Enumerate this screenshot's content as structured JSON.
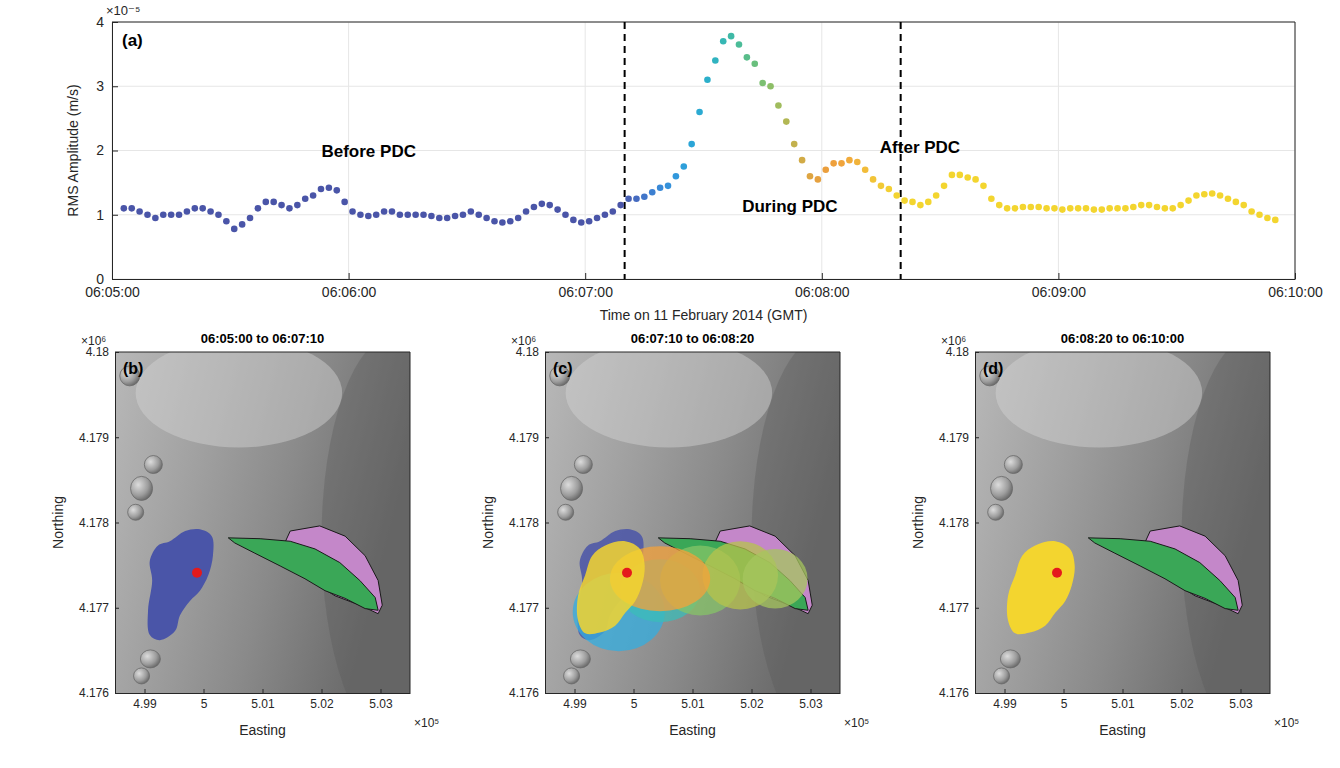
{
  "chart_data": [
    {
      "type": "scatter",
      "panel": "(a)",
      "marker": "circle",
      "grid": true,
      "x_label": "Time on 11 February 2014 (GMT)",
      "y_label": "RMS Amplitude (m/s)",
      "y_multiplier": "×10⁻⁵",
      "xlim": [
        "06:05:00",
        "06:10:00"
      ],
      "xticks": [
        "06:05:00",
        "06:06:00",
        "06:07:00",
        "06:08:00",
        "06:09:00",
        "06:10:00"
      ],
      "ylim": [
        0,
        4
      ],
      "yticks": [
        0,
        1,
        2,
        3,
        4
      ],
      "vlines": [
        "06:07:10",
        "06:08:20"
      ],
      "annotations": [
        "Before PDC",
        "During PDC",
        "After PDC"
      ],
      "x": [
        "06:05:03",
        "06:05:05",
        "06:05:07",
        "06:05:09",
        "06:05:11",
        "06:05:13",
        "06:05:15",
        "06:05:17",
        "06:05:19",
        "06:05:21",
        "06:05:23",
        "06:05:25",
        "06:05:27",
        "06:05:29",
        "06:05:31",
        "06:05:33",
        "06:05:35",
        "06:05:37",
        "06:05:39",
        "06:05:41",
        "06:05:43",
        "06:05:45",
        "06:05:47",
        "06:05:49",
        "06:05:51",
        "06:05:53",
        "06:05:55",
        "06:05:57",
        "06:05:59",
        "06:06:01",
        "06:06:03",
        "06:06:05",
        "06:06:07",
        "06:06:09",
        "06:06:11",
        "06:06:13",
        "06:06:15",
        "06:06:17",
        "06:06:19",
        "06:06:21",
        "06:06:23",
        "06:06:25",
        "06:06:27",
        "06:06:29",
        "06:06:31",
        "06:06:33",
        "06:06:35",
        "06:06:37",
        "06:06:39",
        "06:06:41",
        "06:06:43",
        "06:06:45",
        "06:06:47",
        "06:06:49",
        "06:06:51",
        "06:06:53",
        "06:06:55",
        "06:06:57",
        "06:06:59",
        "06:07:01",
        "06:07:03",
        "06:07:05",
        "06:07:07",
        "06:07:09",
        "06:07:11",
        "06:07:13",
        "06:07:15",
        "06:07:17",
        "06:07:19",
        "06:07:21",
        "06:07:23",
        "06:07:25",
        "06:07:27",
        "06:07:29",
        "06:07:31",
        "06:07:33",
        "06:07:35",
        "06:07:37",
        "06:07:39",
        "06:07:41",
        "06:07:43",
        "06:07:45",
        "06:07:47",
        "06:07:49",
        "06:07:51",
        "06:07:53",
        "06:07:55",
        "06:07:57",
        "06:07:59",
        "06:08:01",
        "06:08:03",
        "06:08:05",
        "06:08:07",
        "06:08:09",
        "06:08:11",
        "06:08:13",
        "06:08:15",
        "06:08:17",
        "06:08:19",
        "06:08:21",
        "06:08:23",
        "06:08:25",
        "06:08:27",
        "06:08:29",
        "06:08:31",
        "06:08:33",
        "06:08:35",
        "06:08:37",
        "06:08:39",
        "06:08:41",
        "06:08:43",
        "06:08:45",
        "06:08:47",
        "06:08:49",
        "06:08:51",
        "06:08:53",
        "06:08:55",
        "06:08:57",
        "06:08:59",
        "06:09:01",
        "06:09:03",
        "06:09:05",
        "06:09:07",
        "06:09:09",
        "06:09:11",
        "06:09:13",
        "06:09:15",
        "06:09:17",
        "06:09:19",
        "06:09:21",
        "06:09:23",
        "06:09:25",
        "06:09:27",
        "06:09:29",
        "06:09:31",
        "06:09:33",
        "06:09:35",
        "06:09:37",
        "06:09:39",
        "06:09:41",
        "06:09:43",
        "06:09:45",
        "06:09:47",
        "06:09:49",
        "06:09:51",
        "06:09:53",
        "06:09:55"
      ],
      "values": [
        1.1,
        1.1,
        1.05,
        1.0,
        0.95,
        1.0,
        1.0,
        1.0,
        1.05,
        1.1,
        1.1,
        1.05,
        1.0,
        0.9,
        0.78,
        0.85,
        0.95,
        1.1,
        1.2,
        1.2,
        1.15,
        1.1,
        1.15,
        1.25,
        1.3,
        1.4,
        1.42,
        1.38,
        1.2,
        1.05,
        1.0,
        0.98,
        1.0,
        1.05,
        1.05,
        1.0,
        1.0,
        1.0,
        1.0,
        0.98,
        0.95,
        0.95,
        0.98,
        1.0,
        1.05,
        1.0,
        0.95,
        0.9,
        0.88,
        0.9,
        0.95,
        1.05,
        1.12,
        1.17,
        1.15,
        1.08,
        1.0,
        0.92,
        0.88,
        0.9,
        0.95,
        1.0,
        1.05,
        1.15,
        1.25,
        1.25,
        1.28,
        1.35,
        1.42,
        1.45,
        1.6,
        1.75,
        2.1,
        2.6,
        3.1,
        3.4,
        3.7,
        3.78,
        3.65,
        3.45,
        3.35,
        3.05,
        3.0,
        2.7,
        2.45,
        2.1,
        1.85,
        1.6,
        1.55,
        1.7,
        1.8,
        1.8,
        1.85,
        1.82,
        1.7,
        1.55,
        1.45,
        1.4,
        1.3,
        1.22,
        1.2,
        1.15,
        1.2,
        1.3,
        1.45,
        1.62,
        1.62,
        1.58,
        1.55,
        1.45,
        1.25,
        1.15,
        1.1,
        1.1,
        1.12,
        1.12,
        1.12,
        1.1,
        1.1,
        1.08,
        1.1,
        1.1,
        1.1,
        1.08,
        1.08,
        1.1,
        1.1,
        1.1,
        1.12,
        1.15,
        1.15,
        1.12,
        1.1,
        1.1,
        1.15,
        1.22,
        1.3,
        1.32,
        1.33,
        1.3,
        1.25,
        1.2,
        1.15,
        1.05,
        1.0,
        0.95,
        0.92
      ]
    },
    {
      "type": "map",
      "panel": "(b)",
      "title": "06:05:00 to 06:07:10",
      "x_label": "Easting",
      "y_label": "Northing",
      "x_multiplier": "×10⁵",
      "y_multiplier": "×10⁶",
      "xlim": [
        4.985,
        5.035
      ],
      "xticks": [
        4.99,
        5,
        5.01,
        5.02,
        5.03
      ],
      "ylim": [
        4.176,
        4.18
      ],
      "yticks": [
        4.176,
        4.177,
        4.178,
        4.179,
        4.18
      ],
      "areas": [
        {
          "color": "#c487c9",
          "line_style": "solid",
          "x": [
            5.0147,
            5.0197,
            5.024,
            5.0274,
            5.0296,
            5.0303,
            5.0296,
            5.0265,
            5.0223,
            5.0181,
            5.0147,
            5.0139
          ],
          "y": [
            4.1779,
            4.17796,
            4.17784,
            4.17761,
            4.17732,
            4.17703,
            4.17693,
            4.17703,
            4.17714,
            4.17732,
            4.17755,
            4.17778
          ]
        },
        {
          "color": "#3aa757",
          "line_style": "solid",
          "x": [
            5.0042,
            5.0096,
            5.0147,
            5.0189,
            5.0231,
            5.0265,
            5.0291,
            5.0296,
            5.0274,
            5.024,
            5.0206,
            5.0172,
            5.013,
            5.0087,
            5.0053
          ],
          "y": [
            4.17782,
            4.17781,
            4.17778,
            4.17769,
            4.17753,
            4.17732,
            4.17712,
            4.17697,
            4.17699,
            4.17711,
            4.1772,
            4.17734,
            4.17749,
            4.17764,
            4.17776
          ]
        },
        {
          "color": "#4a55a8",
          "x": [
            4.9943,
            4.9969,
            4.9994,
            5.0014,
            5.0016,
            5.0008,
            4.9994,
            4.9977,
            4.996,
            4.9952,
            4.9926,
            4.9909,
            4.9906,
            4.9913,
            4.9909,
            4.9923
          ],
          "y": [
            4.17778,
            4.1779,
            4.17792,
            4.17784,
            4.17761,
            4.17738,
            4.1772,
            4.17708,
            4.17691,
            4.17673,
            4.17662,
            4.17668,
            4.17697,
            4.17732,
            4.17755,
            4.17773
          ]
        }
      ],
      "points": {
        "color": "#e41a1c",
        "x": [
          4.9989
        ],
        "y": [
          4.17741
        ]
      }
    },
    {
      "type": "map",
      "panel": "(c)",
      "title": "06:07:10 to 06:08:20",
      "x_label": "Easting",
      "y_label": "Northing",
      "x_multiplier": "×10⁵",
      "y_multiplier": "×10⁶",
      "xlim": [
        4.985,
        5.035
      ],
      "xticks": [
        4.99,
        5,
        5.01,
        5.02,
        5.03
      ],
      "ylim": [
        4.176,
        4.18
      ],
      "yticks": [
        4.176,
        4.177,
        4.178,
        4.179,
        4.18
      ],
      "areas": [
        {
          "color": "#c487c9",
          "line_style": "solid",
          "x": [
            5.0147,
            5.0197,
            5.024,
            5.0274,
            5.0296,
            5.0303,
            5.0296,
            5.0265,
            5.0223,
            5.0181,
            5.0147,
            5.0139
          ],
          "y": [
            4.1779,
            4.17796,
            4.17784,
            4.17761,
            4.17732,
            4.17703,
            4.17693,
            4.17703,
            4.17714,
            4.17732,
            4.17755,
            4.17778
          ]
        },
        {
          "color": "#3aa757",
          "line_style": "solid",
          "x": [
            5.0042,
            5.0096,
            5.0147,
            5.0189,
            5.0231,
            5.0265,
            5.0291,
            5.0296,
            5.0274,
            5.024,
            5.0206,
            5.0172,
            5.013,
            5.0087,
            5.0053
          ],
          "y": [
            4.17782,
            4.17781,
            4.17778,
            4.17769,
            4.17753,
            4.17732,
            4.17712,
            4.17697,
            4.17699,
            4.17711,
            4.1772,
            4.17734,
            4.17749,
            4.17764,
            4.17776
          ]
        },
        {
          "color": "#4a55a8",
          "x": [
            4.9943,
            4.9969,
            4.9994,
            5.0014,
            5.0016,
            5.0008,
            4.9994,
            4.9977,
            4.996,
            4.9952,
            4.9926,
            4.9909,
            4.9906,
            4.9913,
            4.9909,
            4.9923
          ],
          "y": [
            4.17778,
            4.1779,
            4.17792,
            4.17784,
            4.17761,
            4.17738,
            4.1772,
            4.17708,
            4.17691,
            4.17673,
            4.17662,
            4.17668,
            4.17697,
            4.17732,
            4.17755,
            4.17773
          ]
        },
        {
          "color": "#33aee0",
          "x": 4.9975,
          "y": 4.17695,
          "rx": 0.0078,
          "ry": 0.00046
        },
        {
          "color": "#3bbcb8",
          "x": 5.0045,
          "y": 4.1772,
          "rx": 0.0068,
          "ry": 0.00037
        },
        {
          "color": "#86c467",
          "x": 5.0113,
          "y": 4.17732,
          "rx": 0.0068,
          "ry": 0.00041
        },
        {
          "color": "#b7c34c",
          "x": 5.0181,
          "y": 4.17738,
          "rx": 0.0064,
          "ry": 0.0004
        },
        {
          "color": "#a6c65e",
          "x": 5.024,
          "y": 4.17734,
          "rx": 0.0055,
          "ry": 0.00035
        },
        {
          "color": "#f4a23a",
          "x": 5.0045,
          "y": 4.17734,
          "rx": 0.0085,
          "ry": 0.00038
        },
        {
          "color": "#f3d52f",
          "x": [
            4.9952,
            4.9986,
            5.0011,
            5.0019,
            5.0014,
            5.0003,
            4.9986,
            4.9969,
            4.9943,
            4.9918,
            4.9906,
            4.9906,
            4.9918,
            4.993
          ],
          "y": [
            4.17773,
            4.17778,
            4.17769,
            4.17749,
            4.17726,
            4.17708,
            4.17694,
            4.17679,
            4.17671,
            4.1767,
            4.17685,
            4.17714,
            4.17738,
            4.17761
          ]
        }
      ],
      "points": {
        "color": "#e41a1c",
        "x": [
          4.9989
        ],
        "y": [
          4.17741
        ]
      }
    },
    {
      "type": "map",
      "panel": "(d)",
      "title": "06:08:20 to 06:10:00",
      "x_label": "Easting",
      "y_label": "Northing",
      "x_multiplier": "×10⁵",
      "y_multiplier": "×10⁶",
      "xlim": [
        4.985,
        5.035
      ],
      "xticks": [
        4.99,
        5,
        5.01,
        5.02,
        5.03
      ],
      "ylim": [
        4.176,
        4.18
      ],
      "yticks": [
        4.176,
        4.177,
        4.178,
        4.179,
        4.18
      ],
      "areas": [
        {
          "color": "#c487c9",
          "line_style": "solid",
          "x": [
            5.0147,
            5.0197,
            5.024,
            5.0274,
            5.0296,
            5.0303,
            5.0296,
            5.0265,
            5.0223,
            5.0181,
            5.0147,
            5.0139
          ],
          "y": [
            4.1779,
            4.17796,
            4.17784,
            4.17761,
            4.17732,
            4.17703,
            4.17693,
            4.17703,
            4.17714,
            4.17732,
            4.17755,
            4.17778
          ]
        },
        {
          "color": "#3aa757",
          "line_style": "solid",
          "x": [
            5.0042,
            5.0096,
            5.0147,
            5.0189,
            5.0231,
            5.0265,
            5.0291,
            5.0296,
            5.0274,
            5.024,
            5.0206,
            5.0172,
            5.013,
            5.0087,
            5.0053
          ],
          "y": [
            4.17782,
            4.17781,
            4.17778,
            4.17769,
            4.17753,
            4.17732,
            4.17712,
            4.17697,
            4.17699,
            4.17711,
            4.1772,
            4.17734,
            4.17749,
            4.17764,
            4.17776
          ]
        },
        {
          "color": "#f3d52f",
          "x": [
            4.9952,
            4.9986,
            5.0011,
            5.0019,
            5.0014,
            5.0003,
            4.9986,
            4.9969,
            4.9943,
            4.9918,
            4.9906,
            4.9906,
            4.9918,
            4.993
          ],
          "y": [
            4.17773,
            4.17778,
            4.17769,
            4.17749,
            4.17726,
            4.17708,
            4.17694,
            4.17679,
            4.17671,
            4.1767,
            4.17685,
            4.17714,
            4.17738,
            4.17761
          ]
        }
      ],
      "points": {
        "color": "#e41a1c",
        "x": [
          4.9989
        ],
        "y": [
          4.17741
        ]
      }
    }
  ]
}
